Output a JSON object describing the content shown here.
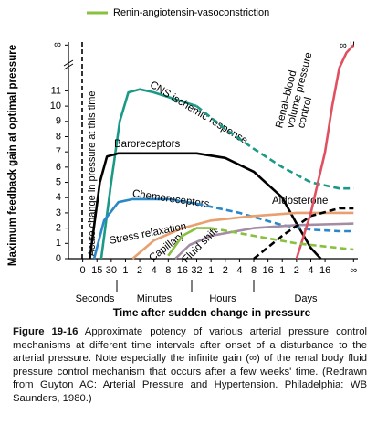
{
  "chart_data": {
    "type": "line",
    "y_axis_label": "Maximum feedback gain at optimal pressure",
    "x_axis_label": "Time after sudden change in pressure",
    "xlim": [
      -1,
      19.3
    ],
    "ylim": [
      0,
      14.2
    ],
    "xticks": [
      {
        "value": 0,
        "label": "0"
      },
      {
        "value": 1,
        "label": "15"
      },
      {
        "value": 2,
        "label": "30"
      },
      {
        "value": 3,
        "label": "1"
      },
      {
        "value": 4,
        "label": "2"
      },
      {
        "value": 5,
        "label": "4"
      },
      {
        "value": 6,
        "label": "8"
      },
      {
        "value": 7,
        "label": "16"
      },
      {
        "value": 8,
        "label": "32"
      },
      {
        "value": 9,
        "label": "1"
      },
      {
        "value": 10,
        "label": "2"
      },
      {
        "value": 11,
        "label": "4"
      },
      {
        "value": 12,
        "label": "8"
      },
      {
        "value": 13,
        "label": "16"
      },
      {
        "value": 14,
        "label": "1"
      },
      {
        "value": 15,
        "label": "2"
      },
      {
        "value": 16,
        "label": "4"
      },
      {
        "value": 17,
        "label": "16"
      },
      {
        "value": 19,
        "label": "∞"
      }
    ],
    "yticks": [
      0,
      1,
      2,
      3,
      4,
      5,
      6,
      7,
      8,
      9,
      10,
      11,
      {
        "value": 14,
        "label": "∞"
      }
    ],
    "time_groups": [
      "Seconds",
      "Minutes",
      "Hours",
      "Days"
    ],
    "annotations": {
      "acute": "Acute change in pressure at this time",
      "infinite": "∞ !!"
    },
    "series": [
      {
        "label": "CNS ischemic response",
        "color": "#1a9a86",
        "dashed": false,
        "x": [
          1.3,
          2,
          2.6,
          3.2,
          4,
          5,
          6,
          7,
          8
        ],
        "values": [
          0,
          5,
          9,
          10.9,
          11.1,
          10.9,
          10.6,
          10.3,
          10
        ]
      },
      {
        "color": "#1a9a86",
        "dashed": true,
        "x": [
          8,
          10,
          12,
          14,
          16,
          18,
          19
        ],
        "values": [
          10,
          8.5,
          7.2,
          6,
          5,
          4.6,
          4.6
        ]
      },
      {
        "label": "Baroreceptors",
        "color": "#000000",
        "dashed": false,
        "x": [
          0.5,
          1.2,
          1.7,
          2.5,
          5,
          8,
          10,
          12,
          14,
          15,
          16,
          16.7
        ],
        "values": [
          0,
          5,
          6.7,
          6.9,
          6.9,
          6.9,
          6.6,
          5.7,
          4,
          2.3,
          0.7,
          0
        ]
      },
      {
        "label": "Chemoreceptors",
        "color": "#2a88c8",
        "dashed": false,
        "x": [
          0.8,
          1.5,
          2.5,
          3.5,
          6,
          8
        ],
        "values": [
          0,
          2.5,
          3.7,
          3.9,
          3.9,
          3.6
        ]
      },
      {
        "color": "#2a88c8",
        "dashed": true,
        "x": [
          8,
          11,
          14,
          16,
          18,
          19
        ],
        "values": [
          3.6,
          3,
          2.2,
          1.9,
          1.8,
          1.8
        ]
      },
      {
        "label": "Stress relaxation",
        "color": "#e8a070",
        "dashed": false,
        "x": [
          3.5,
          5,
          7,
          9,
          12,
          15,
          19
        ],
        "values": [
          0,
          1.2,
          2,
          2.5,
          2.8,
          3,
          3
        ]
      },
      {
        "label": [
          "Capillary",
          "Fluid shift"
        ],
        "color": "#a48ca4",
        "dashed": false,
        "x": [
          6.5,
          7.5,
          9,
          12,
          15,
          19
        ],
        "values": [
          0,
          0.9,
          1.5,
          2,
          2.2,
          2.3
        ]
      },
      {
        "label": "Aldosterone",
        "color": "#000000",
        "dashed": true,
        "x": [
          12,
          14,
          16,
          18,
          19
        ],
        "values": [
          0,
          1.5,
          2.8,
          3.3,
          3.3
        ]
      },
      {
        "label": [
          "Renal–blood",
          "volume pressure",
          "control"
        ],
        "color": "#e05060",
        "dashed": false,
        "x": [
          15,
          16,
          17,
          17.5,
          18,
          18.5,
          19
        ],
        "values": [
          0,
          3,
          7,
          10,
          12.5,
          13.5,
          14
        ]
      },
      {
        "name": "Renin-angiotensin-vasoconstriction",
        "color": "#88c040",
        "dashed": false,
        "x": [
          6,
          7,
          8,
          9
        ],
        "values": [
          0.2,
          1.5,
          2,
          2
        ]
      },
      {
        "color": "#88c040",
        "dashed": true,
        "x": [
          9,
          12,
          15,
          19
        ],
        "values": [
          2,
          1.5,
          1,
          0.6
        ]
      }
    ]
  },
  "caption": {
    "number": "Figure 19-16",
    "text": "Approximate potency of various arterial pressure control mechanisms at different time intervals after onset of a disturbance to the arterial pressure. Note especially the infinite gain (∞) of the renal body fluid pressure control mechanism that occurs after a few weeks' time. (Redrawn from Guyton AC: Arterial Pressure and Hypertension. Philadelphia: WB Saunders, 1980.)"
  }
}
